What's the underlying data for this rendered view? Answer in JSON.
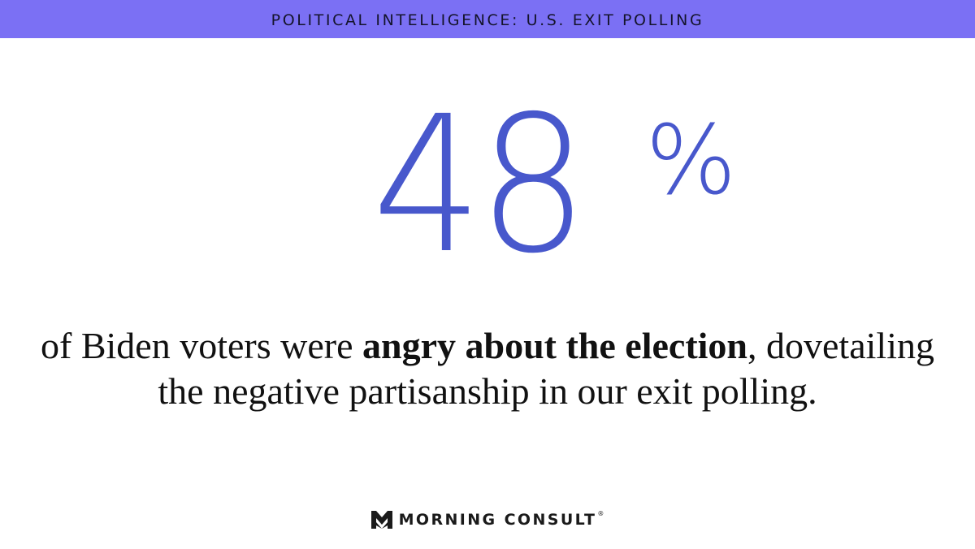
{
  "banner": {
    "title": "POLITICAL INTELLIGENCE: U.S. EXIT POLLING"
  },
  "stat": {
    "value": "48",
    "unit": "%"
  },
  "caption": {
    "before": "of Biden voters were ",
    "emphasis": "angry about the election",
    "after": ", dovetailing the negative partisanship in our exit polling."
  },
  "brand": {
    "name": "MORNING CONSULT",
    "registered": "®"
  },
  "colors": {
    "banner": "#7b70f4",
    "stat": "#4858cc",
    "text": "#111111"
  }
}
